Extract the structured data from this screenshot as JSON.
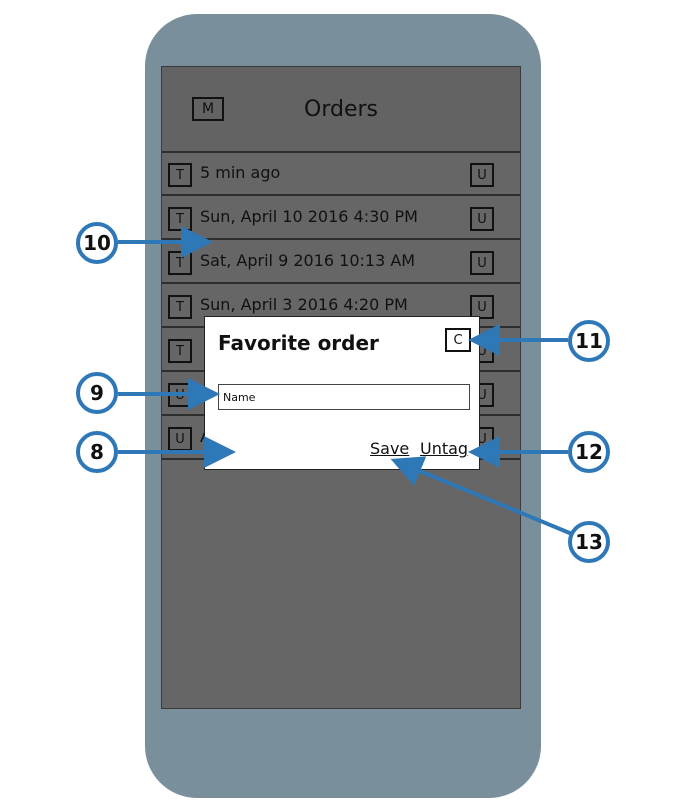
{
  "header": {
    "title": "Orders",
    "menu_button": "M"
  },
  "orders": [
    {
      "tag_button": "T",
      "label": "5 min ago",
      "action_button": "U"
    },
    {
      "tag_button": "T",
      "label": "Sun, April 10 2016 4:30 PM",
      "action_button": "U"
    },
    {
      "tag_button": "T",
      "label": "Sat, April 9 2016 10:13 AM",
      "action_button": "U"
    },
    {
      "tag_button": "T",
      "label": "Sun, April 3 2016 4:20 PM",
      "action_button": "U"
    },
    {
      "tag_button": "T",
      "label": "",
      "action_button": "U"
    },
    {
      "tag_button": "U",
      "label": "",
      "action_button": "U"
    },
    {
      "tag_button": "U",
      "label": "A",
      "action_button": "U"
    }
  ],
  "dialog": {
    "title": "Favorite order",
    "close_button": "C",
    "name_value": "Name",
    "save_label": "Save",
    "untag_label": "Untag"
  },
  "callouts": {
    "c8": "8",
    "c9": "9",
    "c10": "10",
    "c11": "11",
    "c12": "12",
    "c13": "13"
  },
  "colors": {
    "callout_border": "#2f78b8",
    "phone_body": "#7a8f9c",
    "screen_bg": "#666666"
  }
}
